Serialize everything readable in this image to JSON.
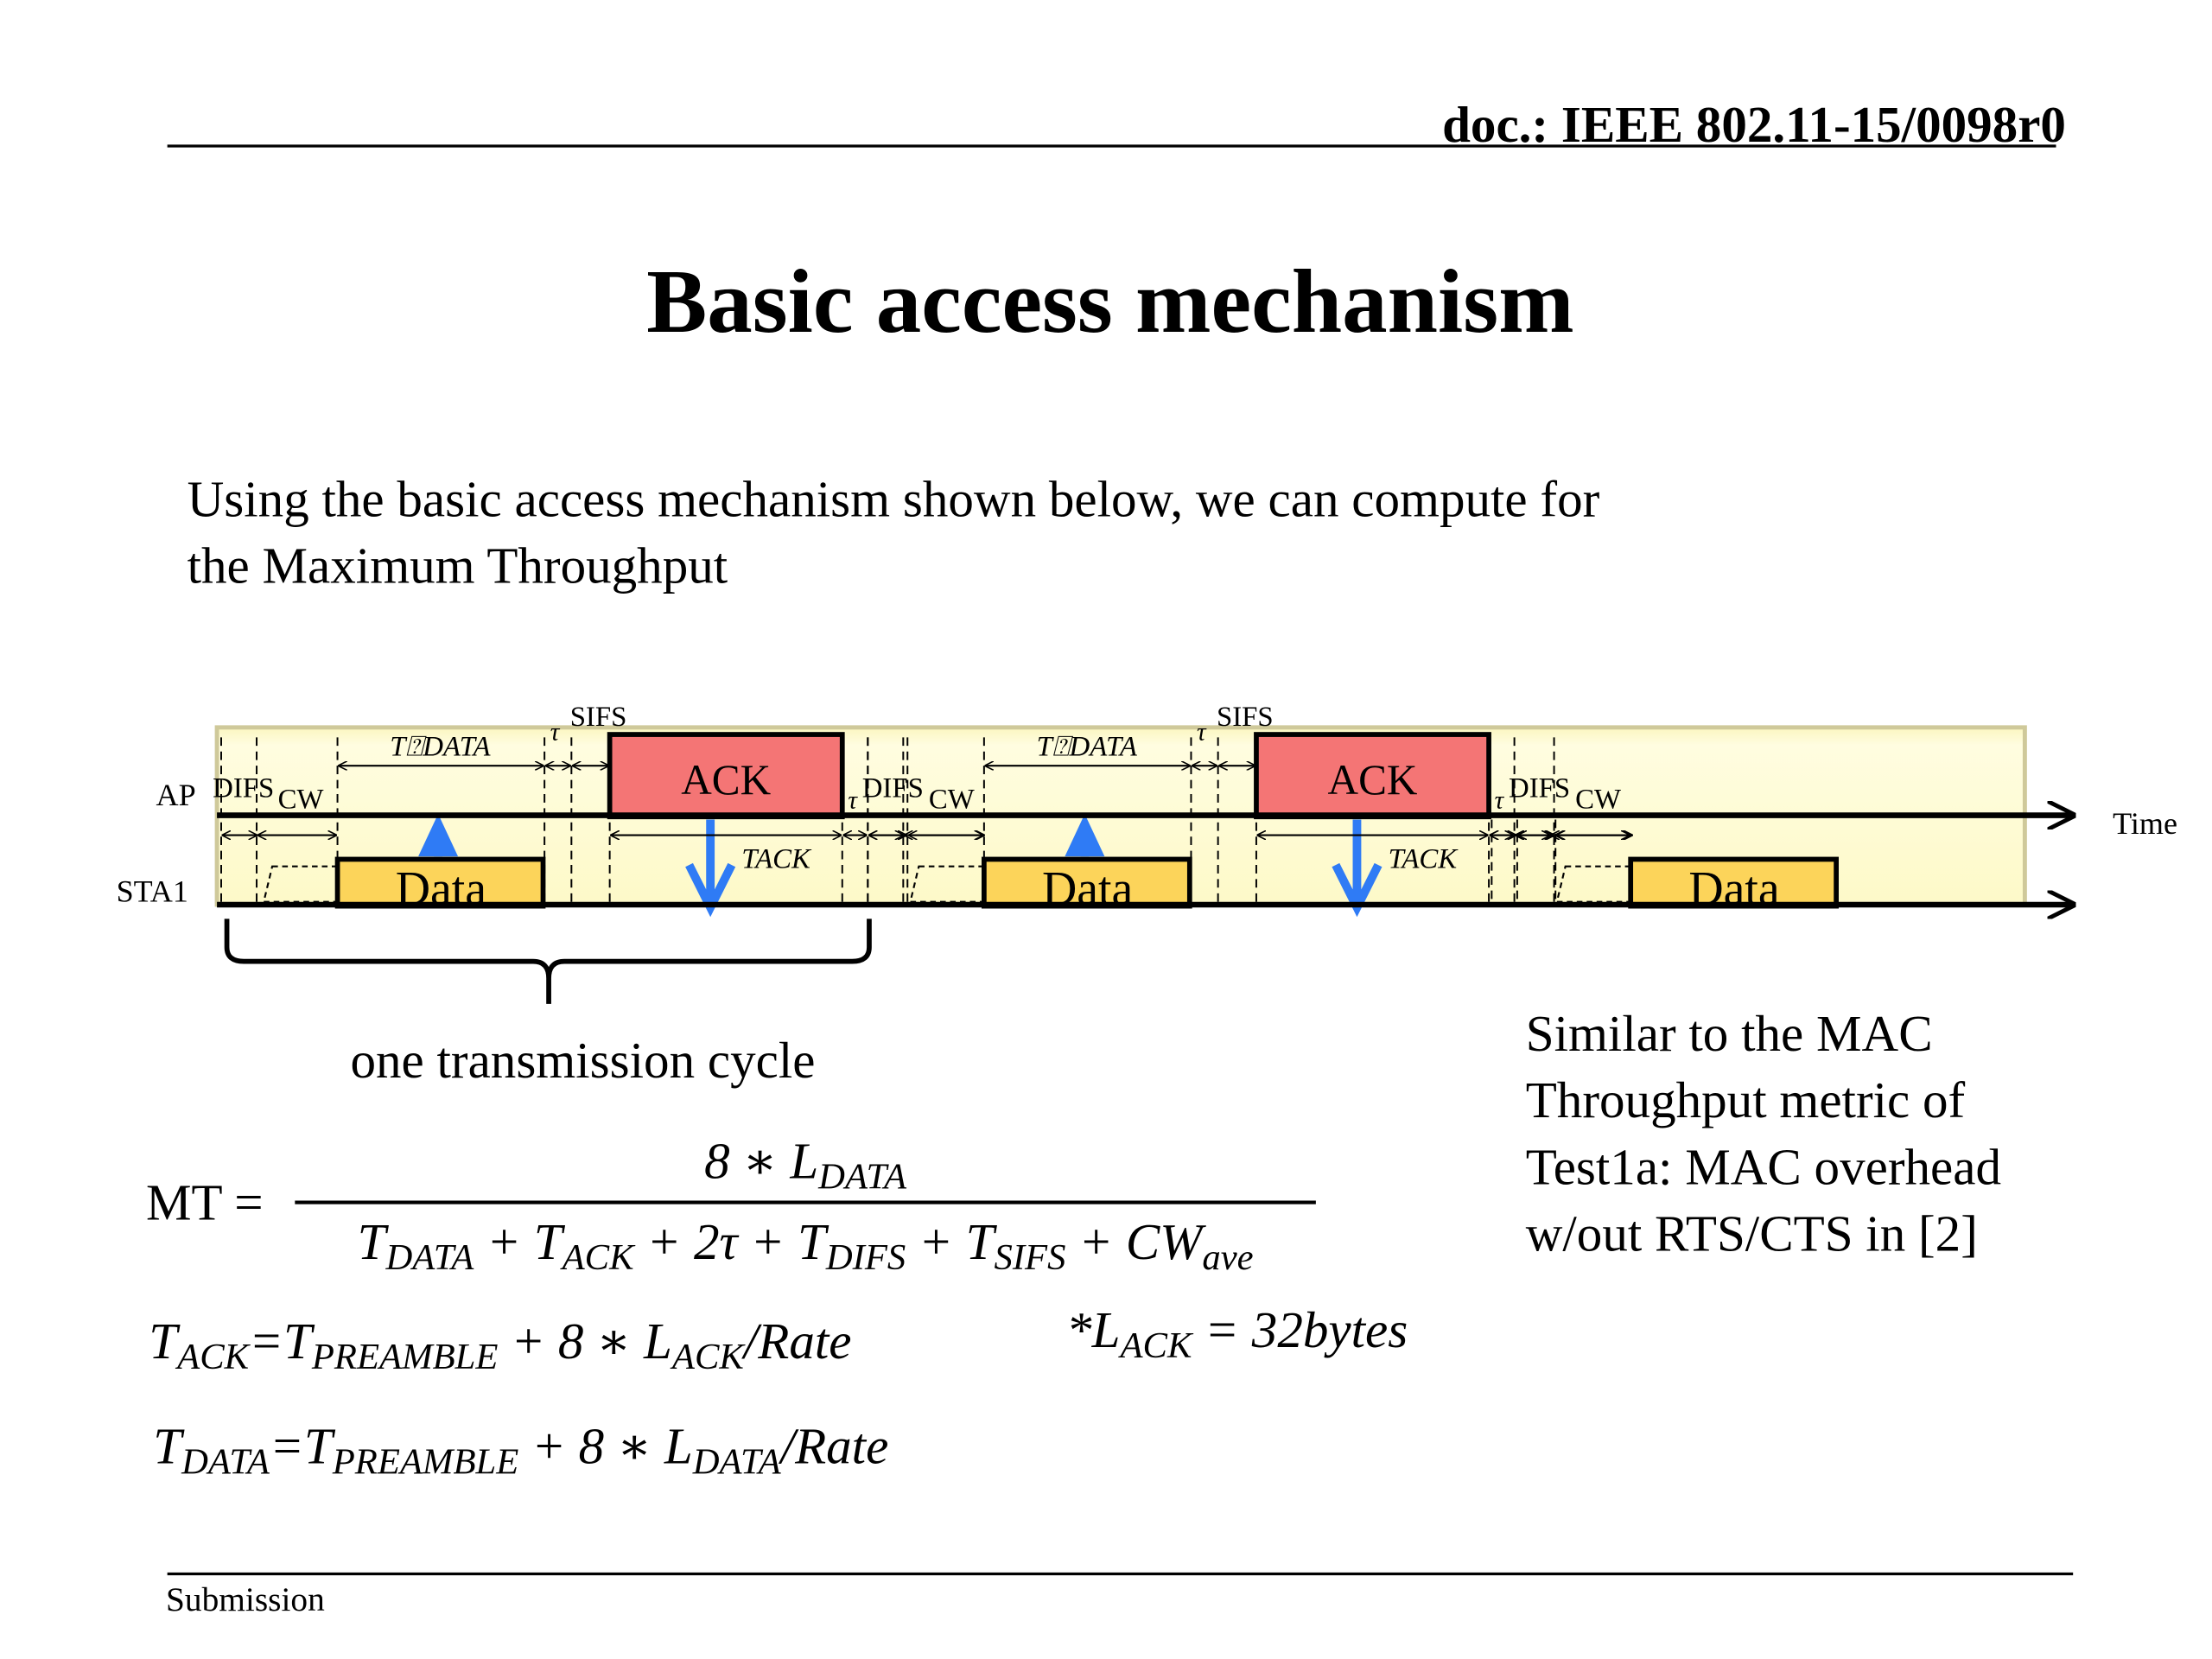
{
  "header": {
    "doc_id": "doc.: IEEE 802.11-15/0098r0"
  },
  "title": "Basic access mechanism",
  "intro": {
    "line1": "Using the basic access mechanism shown below, we can compute for",
    "line2": "the Maximum Throughput"
  },
  "diagram": {
    "ap_label": "AP",
    "sta_label": "STA1",
    "time_label": "Time",
    "ack_label": "ACK",
    "data_label": "Data",
    "difs": "DIFS",
    "cw": "CW",
    "sifs": "SIFS",
    "tau": "τ",
    "t_data": "T⍰DATA",
    "t_ack": "TACK",
    "cycle_label": "one transmission cycle",
    "colors": {
      "background": "#fdf9c8",
      "ack": "#f47575",
      "data": "#fcd45a",
      "arrow": "#2f7bf5"
    }
  },
  "note": {
    "lines": [
      "Similar to the MAC",
      "Throughput metric of",
      "Test1a:  MAC overhead",
      "w/out RTS/CTS in [2]"
    ]
  },
  "equations": {
    "mt_lhs": "MT =",
    "mt_numerator": [
      [
        "8 ∗ L",
        ""
      ],
      [
        "",
        "DATA"
      ]
    ],
    "mt_denominator": [
      [
        "T",
        ""
      ],
      [
        "",
        "DATA"
      ],
      [
        " + T",
        ""
      ],
      [
        "",
        "ACK"
      ],
      [
        " + 2τ + T",
        ""
      ],
      [
        "",
        "DIFS"
      ],
      [
        " + T",
        ""
      ],
      [
        "",
        "SIFS"
      ],
      [
        " + CW",
        ""
      ],
      [
        "",
        "ave"
      ]
    ],
    "t_ack": [
      [
        "T",
        ""
      ],
      [
        "",
        "ACK"
      ],
      [
        "=T",
        ""
      ],
      [
        "",
        "PREAMBLE"
      ],
      [
        " + 8 ∗ L",
        ""
      ],
      [
        "",
        "ACK"
      ],
      [
        "/Rate",
        ""
      ]
    ],
    "l_ack": [
      [
        "*L",
        ""
      ],
      [
        "",
        "ACK"
      ],
      [
        " = 32bytes",
        ""
      ]
    ],
    "t_data": [
      [
        "T",
        ""
      ],
      [
        "",
        "DATA"
      ],
      [
        "=T",
        ""
      ],
      [
        "",
        "PREAMBLE"
      ],
      [
        " + 8 ∗ L",
        ""
      ],
      [
        "",
        "DATA"
      ],
      [
        "/Rate",
        ""
      ]
    ]
  },
  "footer": {
    "label": "Submission"
  }
}
